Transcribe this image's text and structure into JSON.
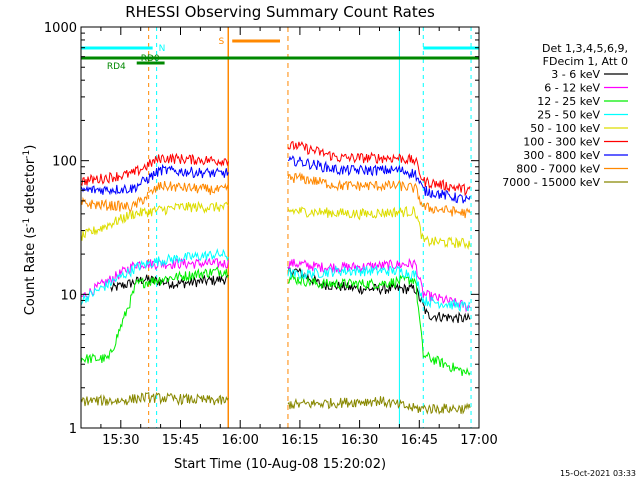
{
  "chart_data": {
    "type": "line",
    "title": "RHESSI Observing Summary Count Rates",
    "xlabel": "Start Time (10-Aug-08 15:20:02)",
    "ylabel_main": "Count Rate (s",
    "ylabel_sup1": "-1",
    "ylabel_mid": " detector",
    "ylabel_sup2": "-1",
    "ylabel_end": ")",
    "yscale": "log",
    "ylim": [
      1,
      1000
    ],
    "xlim_minutes": [
      0,
      100
    ],
    "x_ticks": [
      {
        "t": 10,
        "label": "15:30"
      },
      {
        "t": 25,
        "label": "15:45"
      },
      {
        "t": 40,
        "label": "16:00"
      },
      {
        "t": 55,
        "label": "16:15"
      },
      {
        "t": 70,
        "label": "16:30"
      },
      {
        "t": 85,
        "label": "16:45"
      },
      {
        "t": 100,
        "label": "17:00"
      }
    ],
    "y_ticks": [
      {
        "v": 1,
        "label": "1"
      },
      {
        "v": 10,
        "label": "10"
      },
      {
        "v": 100,
        "label": "100"
      },
      {
        "v": 1000,
        "label": "1000"
      }
    ],
    "legend_header": [
      "Det 1,3,4,5,6,9,",
      "FDecim 1, Att 0"
    ],
    "series": [
      {
        "name": "3 - 6 keV",
        "color": "#000000",
        "values": [
          [
            7.5,
            11
          ],
          [
            12,
            12
          ],
          [
            16,
            13
          ],
          [
            24,
            12
          ],
          [
            36,
            13
          ],
          [
            54,
            15
          ],
          [
            60,
            12
          ],
          [
            70,
            11
          ],
          [
            84,
            11
          ],
          [
            87,
            7
          ],
          [
            98,
            6.5
          ]
        ]
      },
      {
        "name": "6 - 12 keV",
        "color": "#ff00ff",
        "values": [
          [
            0,
            9.5
          ],
          [
            14,
            17
          ],
          [
            20,
            17
          ],
          [
            35,
            17
          ],
          [
            54,
            17
          ],
          [
            60,
            16
          ],
          [
            70,
            16
          ],
          [
            84,
            17
          ],
          [
            86,
            10
          ],
          [
            98,
            8
          ]
        ]
      },
      {
        "name": "12 - 25 keV",
        "color": "#00ee00",
        "values": [
          [
            0,
            3.3
          ],
          [
            7,
            3.3
          ],
          [
            14,
            12
          ],
          [
            20,
            13
          ],
          [
            35,
            15
          ],
          [
            54,
            13
          ],
          [
            60,
            12
          ],
          [
            75,
            12
          ],
          [
            84,
            13
          ],
          [
            86,
            3.5
          ],
          [
            98,
            2.5
          ]
        ]
      },
      {
        "name": "25 - 50 keV",
        "color": "#00ffff",
        "values": [
          [
            0,
            9
          ],
          [
            14,
            16
          ],
          [
            20,
            18
          ],
          [
            35,
            20
          ],
          [
            54,
            14
          ],
          [
            65,
            15
          ],
          [
            80,
            15
          ],
          [
            84,
            14
          ],
          [
            86,
            9
          ],
          [
            98,
            8
          ]
        ]
      },
      {
        "name": "50 - 100 keV",
        "color": "#dddd00",
        "values": [
          [
            0,
            27
          ],
          [
            13,
            40
          ],
          [
            25,
            45
          ],
          [
            35,
            45
          ],
          [
            54,
            42
          ],
          [
            70,
            40
          ],
          [
            84,
            42
          ],
          [
            86,
            25
          ],
          [
            98,
            24
          ]
        ]
      },
      {
        "name": "100 - 300 keV",
        "color": "#ff0000",
        "values": [
          [
            0,
            70
          ],
          [
            13,
            80
          ],
          [
            20,
            105
          ],
          [
            35,
            100
          ],
          [
            54,
            130
          ],
          [
            65,
            105
          ],
          [
            80,
            105
          ],
          [
            84,
            100
          ],
          [
            86,
            70
          ],
          [
            98,
            60
          ]
        ]
      },
      {
        "name": "300 - 800 keV",
        "color": "#0000ff",
        "values": [
          [
            0,
            60
          ],
          [
            13,
            62
          ],
          [
            20,
            85
          ],
          [
            35,
            80
          ],
          [
            54,
            100
          ],
          [
            65,
            85
          ],
          [
            80,
            85
          ],
          [
            84,
            80
          ],
          [
            86,
            60
          ],
          [
            98,
            50
          ]
        ]
      },
      {
        "name": "800 - 7000 keV",
        "color": "#ff8800",
        "values": [
          [
            0,
            48
          ],
          [
            13,
            45
          ],
          [
            20,
            65
          ],
          [
            35,
            60
          ],
          [
            54,
            75
          ],
          [
            65,
            65
          ],
          [
            80,
            65
          ],
          [
            84,
            62
          ],
          [
            86,
            45
          ],
          [
            98,
            40
          ]
        ]
      },
      {
        "name": "7000 - 15000 keV",
        "color": "#888800",
        "values": [
          [
            0,
            1.6
          ],
          [
            10,
            1.6
          ],
          [
            16,
            1.7
          ],
          [
            35,
            1.6
          ],
          [
            54,
            1.5
          ],
          [
            75,
            1.6
          ],
          [
            84,
            1.4
          ],
          [
            98,
            1.4
          ]
        ]
      }
    ],
    "flags": [
      {
        "label": "N",
        "color": "#00ffff"
      },
      {
        "label": "RD0",
        "color": "#008800"
      },
      {
        "label": "RD4",
        "color": "#008800"
      },
      {
        "label": "S",
        "color": "#ff8800"
      }
    ],
    "footer_timestamp": "15-Oct-2021 03:33"
  }
}
